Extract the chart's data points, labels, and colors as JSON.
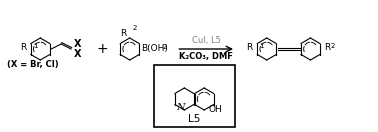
{
  "bg_color": "#ffffff",
  "box_color": "#000000",
  "text_color": "#000000",
  "gray_color": "#808080",
  "fig_width": 3.78,
  "fig_height": 1.32,
  "dpi": 100,
  "title": "",
  "reagents_line1": "CuI, L5",
  "reagents_line2": "K₂CO₃, DMF",
  "x_label": "(X = Br, Cl)",
  "ligand_label": "L5",
  "ligand_label2": "OH",
  "ligand_N": "N"
}
